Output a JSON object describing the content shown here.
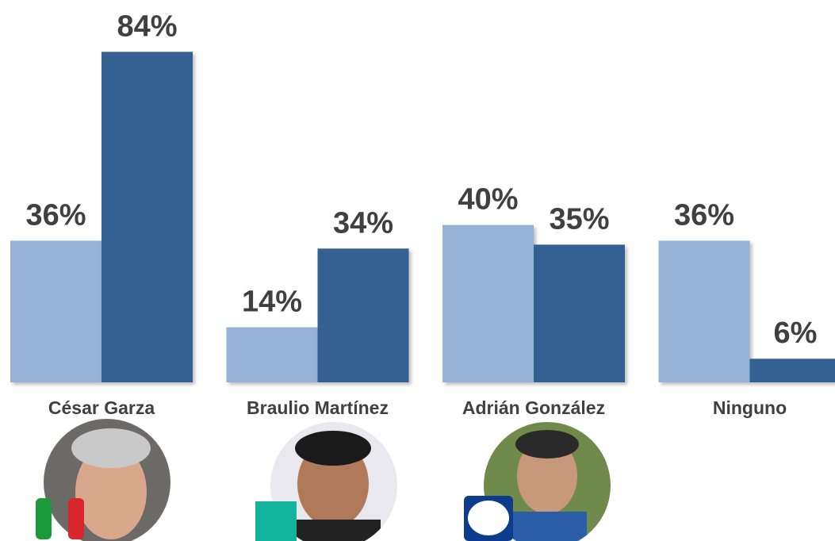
{
  "chart_data": {
    "type": "bar",
    "categories": [
      "César Garza",
      "Braulio Martínez",
      "Adrián González",
      "Ninguno"
    ],
    "series": [
      {
        "color": "#95b3d7",
        "values": [
          36,
          14,
          40,
          36
        ],
        "value_labels": [
          "36%",
          "14%",
          "40%",
          "36%"
        ]
      },
      {
        "color": "#366092",
        "values": [
          84,
          34,
          35,
          6
        ],
        "value_labels": [
          "84%",
          "34%",
          "35%",
          "6%"
        ]
      }
    ]
  }
}
